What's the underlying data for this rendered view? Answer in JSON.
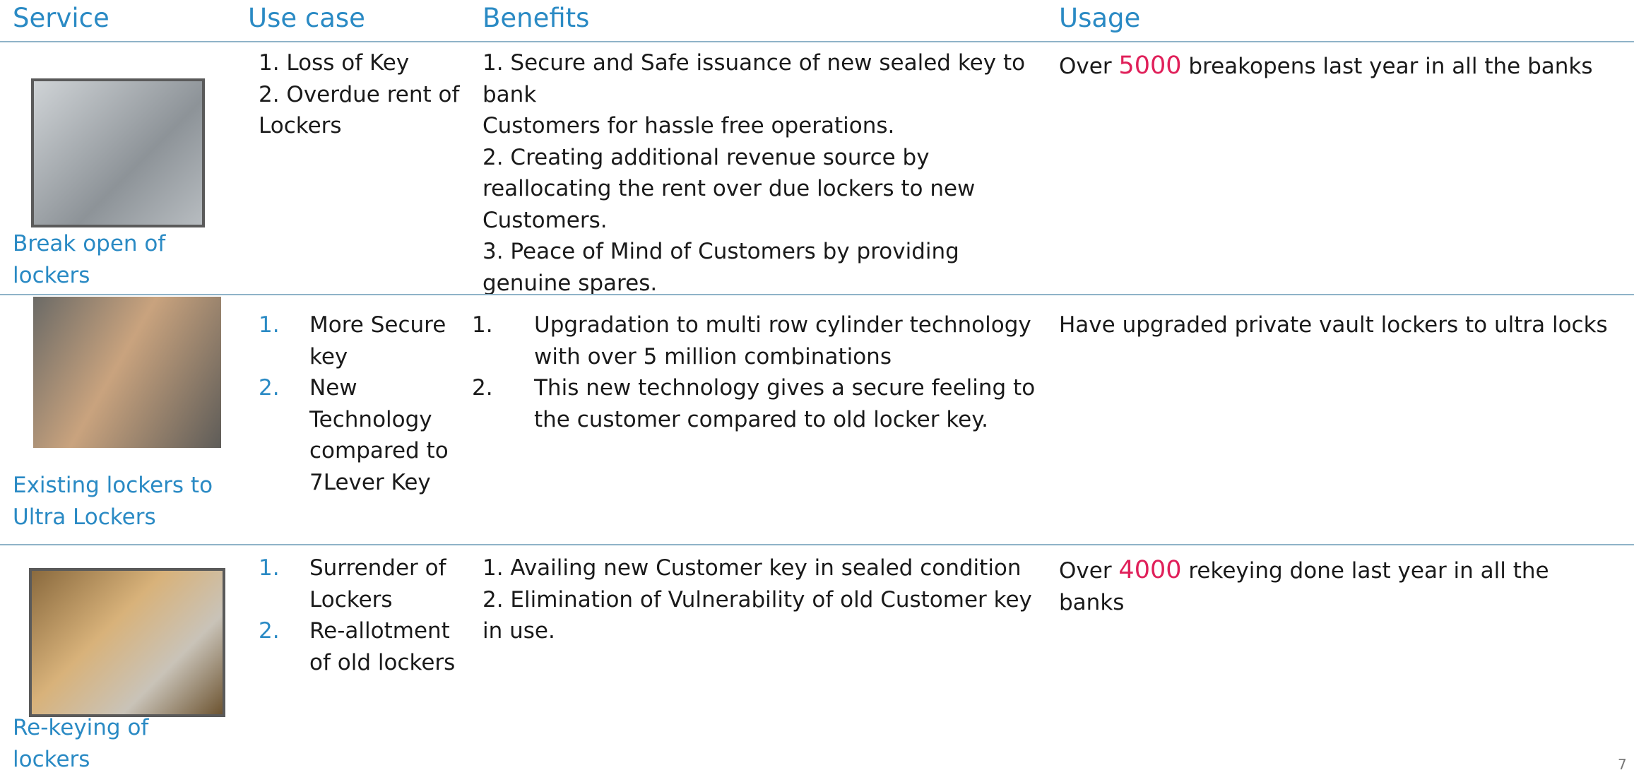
{
  "header": {
    "columns": [
      "Service",
      "Use case",
      "Benefits",
      "Usage"
    ]
  },
  "rows": [
    {
      "service": "Break open of lockers",
      "use_case": [
        "1. Loss of Key",
        "2. Overdue rent of Lockers"
      ],
      "benefits": [
        "1. Secure and Safe issuance of new sealed key to bank",
        "Customers for hassle free operations.",
        "2. Creating additional revenue source by reallocating the rent over due lockers to new Customers.",
        "3. Peace of Mind of Customers by providing genuine spares."
      ],
      "usage": [
        "Over ",
        "5000",
        " breakopens last year in all the banks"
      ]
    },
    {
      "service": "Existing lockers to Ultra Lockers",
      "use_case": [
        {
          "marker": "1.",
          "text": "More Secure key"
        },
        {
          "marker": "2.",
          "text": "New Technology compared to 7Lever Key"
        }
      ],
      "benefits": [
        {
          "marker": "1.",
          "text": "Upgradation to multi row cylinder technology with over 5 million combinations"
        },
        {
          "marker": "2.",
          "text": "This new technology gives a secure feeling to the customer compared to old locker key."
        }
      ],
      "usage": [
        "Have upgraded private vault lockers to ultra locks"
      ]
    },
    {
      "service": "Re-keying of lockers",
      "use_case": [
        {
          "marker": "1.",
          "text": "Surrender of Lockers"
        },
        {
          "marker": "2.",
          "text": "Re-allotment of old lockers"
        }
      ],
      "benefits": [
        "1. Availing new Customer key in sealed condition",
        "2. Elimination of Vulnerability of old Customer key in use."
      ],
      "usage": [
        "Over ",
        "4000",
        " rekeying done last year in all the banks"
      ]
    }
  ],
  "page_number": "7"
}
